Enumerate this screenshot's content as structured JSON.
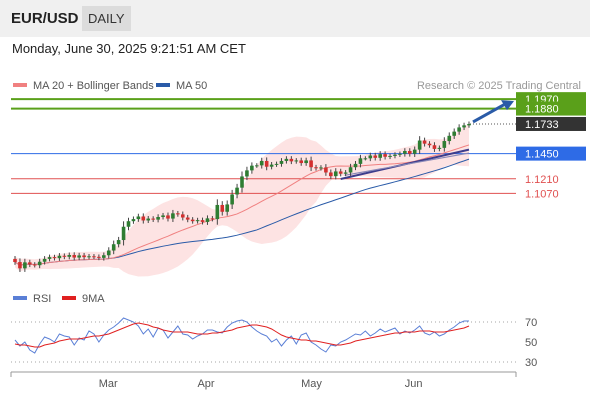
{
  "header": {
    "symbol": "EUR/USD",
    "timeframe": "DAILY",
    "datetime": "Monday, June 30, 2025 9:21:51 AM CET"
  },
  "legend": {
    "ma20_label": "MA 20 + Bollinger Bands",
    "ma50_label": "MA 50",
    "credit": "Research © 2025 Trading Central",
    "rsi_label": "RSI",
    "ma9_label": "9MA"
  },
  "colors": {
    "bullish": "#2e7d32",
    "bearish": "#d32f2f",
    "ma20": "#f08080",
    "bollinger_fill": "#fde3e3",
    "ma50": "#2a5ba8",
    "resistance_green": "#5aa01a",
    "support_blue": "#2e6be6",
    "support_red": "#e05050",
    "price_tag": "#333333",
    "rsi": "#5a7fd6",
    "rsi_ma": "#e02020",
    "trendline": "#3d3d8c"
  },
  "chart_data": [
    {
      "type": "candlestick",
      "title": "EUR/USD",
      "x_labels": [
        "Mar",
        "Apr",
        "May",
        "Jun"
      ],
      "y_range": [
        1.032,
        1.2
      ],
      "close": [
        1.0415,
        1.0355,
        1.0412,
        1.0392,
        1.0385,
        1.0418,
        1.0445,
        1.0462,
        1.0452,
        1.0475,
        1.0465,
        1.0482,
        1.0458,
        1.0478,
        1.0462,
        1.047,
        1.0465,
        1.0455,
        1.048,
        1.0525,
        1.0585,
        1.0625,
        1.0752,
        1.0805,
        1.0825,
        1.085,
        1.0812,
        1.083,
        1.082,
        1.0845,
        1.086,
        1.083,
        1.088,
        1.087,
        1.084,
        1.082,
        1.0805,
        1.0815,
        1.0798,
        1.0832,
        1.0825,
        1.096,
        1.0895,
        1.0965,
        1.106,
        1.1125,
        1.1232,
        1.129,
        1.1335,
        1.1338,
        1.138,
        1.1325,
        1.1345,
        1.1352,
        1.138,
        1.14,
        1.1376,
        1.1385,
        1.136,
        1.1385,
        1.132,
        1.131,
        1.1318,
        1.127,
        1.1235,
        1.128,
        1.1258,
        1.127,
        1.132,
        1.1352,
        1.1405,
        1.1405,
        1.1432,
        1.141,
        1.1445,
        1.142,
        1.1428,
        1.144,
        1.1448,
        1.1475,
        1.1448,
        1.1488,
        1.1575,
        1.1545,
        1.153,
        1.1495,
        1.1505,
        1.157,
        1.162,
        1.166,
        1.17,
        1.172,
        1.1733
      ],
      "ma20_range": [
        1.04,
        1.158
      ],
      "ma50_range": [
        1.038,
        1.143
      ],
      "levels": [
        {
          "label": "1.1970",
          "value": 1.197,
          "style": "green-tag"
        },
        {
          "label": "1.1880",
          "value": 1.188,
          "style": "green-tag"
        },
        {
          "label": "1.1733",
          "value": 1.1733,
          "style": "current"
        },
        {
          "label": "1.1450",
          "value": 1.145,
          "style": "blue-tag"
        },
        {
          "label": "1.1210",
          "value": 1.121,
          "style": "red"
        },
        {
          "label": "1.1070",
          "value": 1.107,
          "style": "red"
        }
      ]
    },
    {
      "type": "line",
      "title": "RSI",
      "y_ticks": [
        30,
        50,
        70
      ],
      "ylim": [
        20,
        80
      ],
      "series": [
        {
          "name": "RSI",
          "values": [
            52,
            46,
            50,
            42,
            39,
            48,
            55,
            53,
            50,
            58,
            56,
            55,
            47,
            54,
            52,
            61,
            58,
            50,
            57,
            62,
            65,
            69,
            74,
            72,
            70,
            66,
            58,
            63,
            55,
            64,
            62,
            54,
            60,
            66,
            58,
            57,
            53,
            56,
            58,
            62,
            62,
            60,
            59,
            65,
            69,
            71,
            72,
            70,
            65,
            61,
            58,
            56,
            50,
            53,
            46,
            52,
            56,
            48,
            57,
            59,
            50,
            47,
            43,
            40,
            47,
            46,
            50,
            52,
            55,
            58,
            57,
            61,
            56,
            59,
            63,
            60,
            62,
            64,
            58,
            61,
            59,
            62,
            66,
            59,
            57,
            60,
            56,
            58,
            62,
            65,
            69,
            71,
            71
          ]
        },
        {
          "name": "9MA",
          "values": [
            48,
            47,
            47,
            46,
            45,
            45,
            47,
            48,
            49,
            51,
            52,
            53,
            53,
            53,
            54,
            55,
            56,
            56,
            57,
            58,
            60,
            62,
            64,
            66,
            68,
            69,
            68,
            67,
            65,
            64,
            62,
            61,
            60,
            60,
            60,
            60,
            59,
            58,
            58,
            58,
            59,
            59,
            60,
            61,
            62,
            64,
            65,
            66,
            67,
            67,
            66,
            65,
            63,
            60,
            57,
            55,
            54,
            53,
            52,
            52,
            51,
            51,
            50,
            49,
            48,
            47,
            47,
            48,
            49,
            51,
            52,
            53,
            54,
            55,
            56,
            57,
            58,
            59,
            59,
            60,
            60,
            60,
            61,
            61,
            61,
            60,
            60,
            60,
            61,
            62,
            63,
            64,
            66
          ]
        }
      ]
    }
  ]
}
